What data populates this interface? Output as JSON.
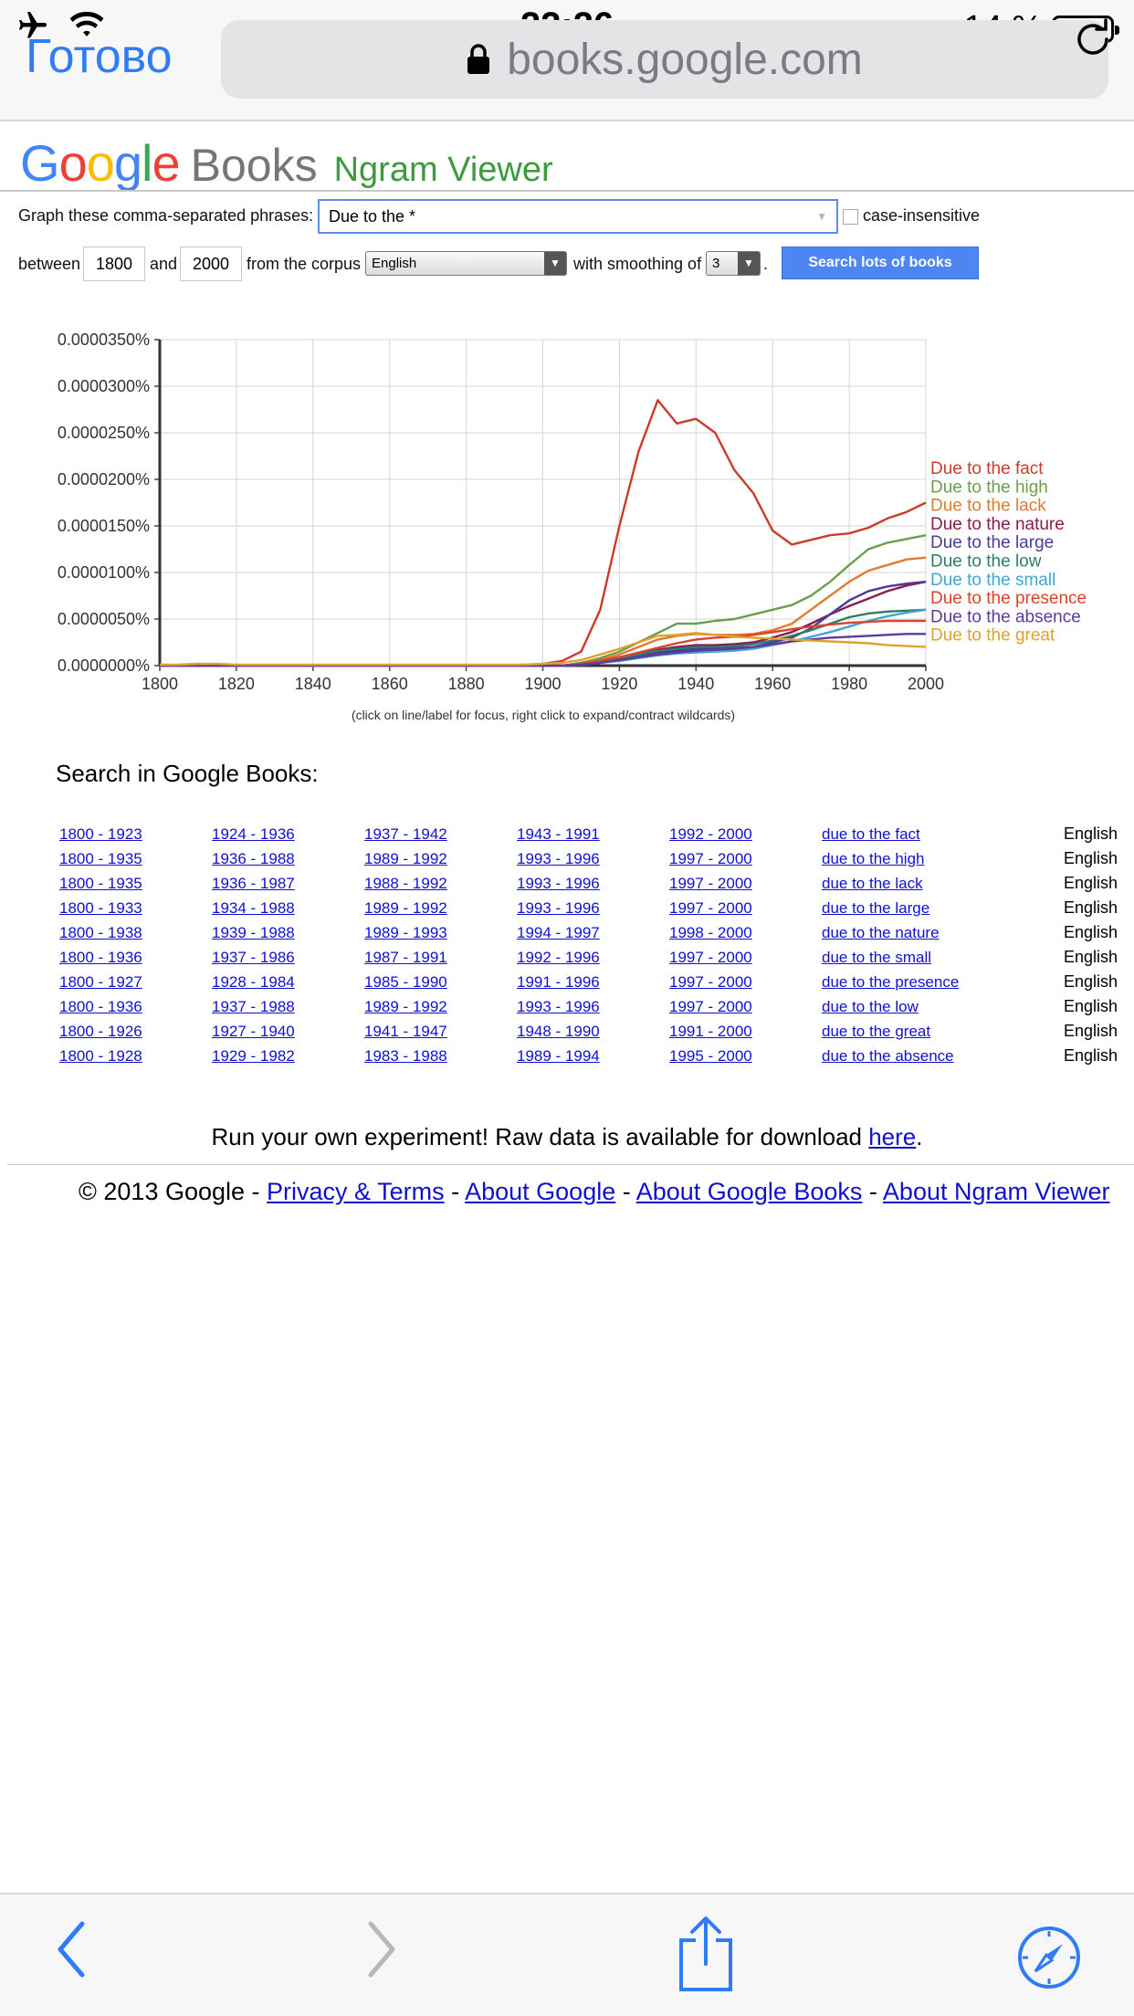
{
  "status_bar": {
    "time": "22:26",
    "battery": "14 %",
    "battery_level": 0.14
  },
  "safari": {
    "done_label": "Готово",
    "url": "books.google.com"
  },
  "header": {
    "google": "Google",
    "books": "Books",
    "title": "Ngram Viewer"
  },
  "form": {
    "phrases_label": "Graph these comma-separated phrases:",
    "phrases_value": "Due to the *",
    "case_insensitive_label": "case-insensitive",
    "between_label": "between",
    "start_year": "1800",
    "and_label": "and",
    "end_year": "2000",
    "corpus_label": "from the corpus",
    "corpus_value": "English",
    "smoothing_label": "with smoothing of",
    "smoothing_value": "3",
    "period": ".",
    "search_button": "Search lots of books"
  },
  "chart_note": "(click on line/label for focus, right click to expand/contract wildcards)",
  "chart_data": {
    "type": "line",
    "x": [
      1800,
      1805,
      1810,
      1815,
      1820,
      1825,
      1830,
      1835,
      1840,
      1845,
      1850,
      1855,
      1860,
      1865,
      1870,
      1875,
      1880,
      1885,
      1890,
      1895,
      1900,
      1905,
      1910,
      1915,
      1920,
      1925,
      1930,
      1935,
      1940,
      1945,
      1950,
      1955,
      1960,
      1965,
      1970,
      1975,
      1980,
      1985,
      1990,
      1995,
      2000
    ],
    "xlim": [
      1800,
      2000
    ],
    "ylim": [
      0,
      3.5e-05
    ],
    "x_ticks": [
      "1800",
      "1820",
      "1840",
      "1860",
      "1880",
      "1900",
      "1920",
      "1940",
      "1960",
      "1980",
      "2000"
    ],
    "y_ticks": [
      "0.0000000%",
      "0.0000050%",
      "0.0000100%",
      "0.0000150%",
      "0.0000200%",
      "0.0000250%",
      "0.0000300%",
      "0.0000350%"
    ],
    "grid": true,
    "legend_position": "right end of lines",
    "series": [
      {
        "name": "Due to the fact",
        "color": "#cc3a2a",
        "values": [
          0,
          0,
          0,
          0,
          0,
          0,
          0,
          0,
          0,
          0,
          0,
          0,
          0,
          0,
          0,
          0,
          0,
          0,
          0,
          0,
          2e-07,
          5e-07,
          1.5e-06,
          6e-06,
          1.5e-05,
          2.3e-05,
          2.85e-05,
          2.6e-05,
          2.65e-05,
          2.5e-05,
          2.1e-05,
          1.85e-05,
          1.45e-05,
          1.3e-05,
          1.35e-05,
          1.4e-05,
          1.42e-05,
          1.48e-05,
          1.58e-05,
          1.65e-05,
          1.75e-05
        ]
      },
      {
        "name": "Due to the high",
        "color": "#6a9e4e",
        "values": [
          0,
          0,
          0,
          0,
          0,
          0,
          0,
          0,
          0,
          0,
          0,
          0,
          0,
          0,
          0,
          0,
          0,
          0,
          0,
          0,
          0,
          0,
          3e-07,
          8e-07,
          1.5e-06,
          2.5e-06,
          3.5e-06,
          4.5e-06,
          4.5e-06,
          4.8e-06,
          5e-06,
          5.5e-06,
          6e-06,
          6.5e-06,
          7.5e-06,
          9e-06,
          1.08e-05,
          1.25e-05,
          1.32e-05,
          1.36e-05,
          1.4e-05
        ]
      },
      {
        "name": "Due to the lack",
        "color": "#e07b31",
        "values": [
          0,
          0,
          0,
          0,
          0,
          0,
          0,
          0,
          0,
          0,
          0,
          0,
          0,
          0,
          0,
          0,
          0,
          0,
          0,
          0,
          0,
          0,
          2e-07,
          6e-07,
          1.2e-06,
          2e-06,
          2.8e-06,
          3.2e-06,
          3.4e-06,
          3.3e-06,
          3.3e-06,
          3.4e-06,
          3.8e-06,
          4.5e-06,
          6e-06,
          7.5e-06,
          9e-06,
          1.02e-05,
          1.08e-05,
          1.14e-05,
          1.16e-05
        ]
      },
      {
        "name": "Due to the nature",
        "color": "#8c1a4f",
        "values": [
          0,
          0,
          0,
          0,
          0,
          0,
          0,
          0,
          0,
          0,
          0,
          0,
          0,
          0,
          0,
          0,
          0,
          0,
          0,
          0,
          0,
          0,
          2e-07,
          5e-07,
          9e-07,
          1.3e-06,
          1.7e-06,
          2e-06,
          2.2e-06,
          2.2e-06,
          2.3e-06,
          2.5e-06,
          3e-06,
          3.6e-06,
          4.5e-06,
          5.5e-06,
          6.4e-06,
          7.2e-06,
          8e-06,
          8.6e-06,
          9e-06
        ]
      },
      {
        "name": "Due to the large",
        "color": "#4a3a9c",
        "values": [
          0,
          0,
          0,
          0,
          0,
          0,
          0,
          0,
          0,
          0,
          0,
          0,
          0,
          0,
          0,
          0,
          0,
          0,
          0,
          0,
          0,
          0,
          1e-07,
          3e-07,
          6e-07,
          1e-06,
          1.4e-06,
          1.6e-06,
          1.8e-06,
          1.8e-06,
          1.9e-06,
          2e-06,
          2.5e-06,
          3e-06,
          4e-06,
          5.5e-06,
          7e-06,
          8e-06,
          8.5e-06,
          8.8e-06,
          9e-06
        ]
      },
      {
        "name": "Due to the low",
        "color": "#2f7d63",
        "values": [
          0,
          0,
          0,
          0,
          0,
          0,
          0,
          0,
          0,
          0,
          0,
          0,
          0,
          0,
          0,
          0,
          0,
          0,
          0,
          0,
          0,
          0,
          2e-07,
          4e-07,
          8e-07,
          1.2e-06,
          1.6e-06,
          1.8e-06,
          2e-06,
          2e-06,
          2.1e-06,
          2.3e-06,
          2.7e-06,
          3.2e-06,
          3.8e-06,
          4.5e-06,
          5.2e-06,
          5.6e-06,
          5.8e-06,
          5.9e-06,
          6e-06
        ]
      },
      {
        "name": "Due to the small",
        "color": "#42a5d4",
        "values": [
          0,
          0,
          0,
          0,
          0,
          0,
          0,
          0,
          0,
          0,
          0,
          0,
          0,
          0,
          0,
          0,
          0,
          0,
          0,
          0,
          0,
          0,
          1e-07,
          3e-07,
          5e-07,
          8e-07,
          1.1e-06,
          1.3e-06,
          1.4e-06,
          1.5e-06,
          1.6e-06,
          1.8e-06,
          2.2e-06,
          2.6e-06,
          3.1e-06,
          3.6e-06,
          4.2e-06,
          4.8e-06,
          5.3e-06,
          5.7e-06,
          6e-06
        ]
      },
      {
        "name": "Due to the presence",
        "color": "#d9442b",
        "values": [
          0,
          0,
          0,
          0,
          0,
          0,
          0,
          0,
          0,
          0,
          0,
          0,
          0,
          0,
          0,
          0,
          0,
          0,
          0,
          0,
          0,
          0,
          2e-07,
          5e-07,
          9e-07,
          1.4e-06,
          1.9e-06,
          2.4e-06,
          2.8e-06,
          3e-06,
          3.1e-06,
          3.3e-06,
          3.6e-06,
          3.9e-06,
          4.2e-06,
          4.4e-06,
          4.6e-06,
          4.7e-06,
          4.8e-06,
          4.8e-06,
          4.8e-06
        ]
      },
      {
        "name": "Due to the absence",
        "color": "#5c3a9e",
        "values": [
          0,
          0,
          0,
          0,
          0,
          0,
          0,
          0,
          0,
          0,
          0,
          0,
          0,
          0,
          0,
          0,
          0,
          0,
          0,
          0,
          0,
          0,
          1e-07,
          3e-07,
          6e-07,
          9e-07,
          1.2e-06,
          1.4e-06,
          1.6e-06,
          1.7e-06,
          1.8e-06,
          2e-06,
          2.3e-06,
          2.6e-06,
          2.8e-06,
          3e-06,
          3.1e-06,
          3.2e-06,
          3.3e-06,
          3.4e-06,
          3.4e-06
        ]
      },
      {
        "name": "Due to the great",
        "color": "#e0a12e",
        "values": [
          1e-07,
          1e-07,
          2e-07,
          2e-07,
          1e-07,
          1e-07,
          1e-07,
          1e-07,
          1e-07,
          1e-07,
          1e-07,
          1e-07,
          1e-07,
          1e-07,
          1e-07,
          1e-07,
          1e-07,
          1e-07,
          1e-07,
          1e-07,
          2e-07,
          3e-07,
          6e-07,
          1.2e-06,
          1.8e-06,
          2.5e-06,
          3.2e-06,
          3.3e-06,
          3.5e-06,
          3.3e-06,
          3.1e-06,
          3e-06,
          2.9e-06,
          2.8e-06,
          2.7e-06,
          2.6e-06,
          2.5e-06,
          2.4e-06,
          2.2e-06,
          2.1e-06,
          2e-06
        ]
      }
    ]
  },
  "search_heading": "Search in Google Books:",
  "results": [
    {
      "ranges": [
        "1800 - 1923",
        "1924 - 1936",
        "1937 - 1942",
        "1943 - 1991",
        "1992 - 2000"
      ],
      "phrase": "due to the fact",
      "lang": "English"
    },
    {
      "ranges": [
        "1800 - 1935",
        "1936 - 1988",
        "1989 - 1992",
        "1993 - 1996",
        "1997 - 2000"
      ],
      "phrase": "due to the high",
      "lang": "English"
    },
    {
      "ranges": [
        "1800 - 1935",
        "1936 - 1987",
        "1988 - 1992",
        "1993 - 1996",
        "1997 - 2000"
      ],
      "phrase": "due to the lack",
      "lang": "English"
    },
    {
      "ranges": [
        "1800 - 1933",
        "1934 - 1988",
        "1989 - 1992",
        "1993 - 1996",
        "1997 - 2000"
      ],
      "phrase": "due to the large",
      "lang": "English"
    },
    {
      "ranges": [
        "1800 - 1938",
        "1939 - 1988",
        "1989 - 1993",
        "1994 - 1997",
        "1998 - 2000"
      ],
      "phrase": "due to the nature",
      "lang": "English"
    },
    {
      "ranges": [
        "1800 - 1936",
        "1937 - 1986",
        "1987 - 1991",
        "1992 - 1996",
        "1997 - 2000"
      ],
      "phrase": "due to the small",
      "lang": "English"
    },
    {
      "ranges": [
        "1800 - 1927",
        "1928 - 1984",
        "1985 - 1990",
        "1991 - 1996",
        "1997 - 2000"
      ],
      "phrase": "due to the presence",
      "lang": "English"
    },
    {
      "ranges": [
        "1800 - 1936",
        "1937 - 1988",
        "1989 - 1992",
        "1993 - 1996",
        "1997 - 2000"
      ],
      "phrase": "due to the low",
      "lang": "English"
    },
    {
      "ranges": [
        "1800 - 1926",
        "1927 - 1940",
        "1941 - 1947",
        "1948 - 1990",
        "1991 - 2000"
      ],
      "phrase": "due to the great",
      "lang": "English"
    },
    {
      "ranges": [
        "1800 - 1928",
        "1929 - 1982",
        "1983 - 1988",
        "1989 - 1994",
        "1995 - 2000"
      ],
      "phrase": "due to the absence",
      "lang": "English"
    }
  ],
  "raw_data": {
    "text": "Run your own experiment! Raw data is available for download ",
    "link": "here",
    "end": "."
  },
  "footer": {
    "copyright": "© 2013 Google - ",
    "privacy": "Privacy & Terms",
    "sep": " - ",
    "about_google": "About Google",
    "about_books": "About Google Books",
    "about_ngram": "About Ngram Viewer"
  },
  "colors": {
    "accent": "#2f7cf6",
    "search_button": "#4d86f3",
    "link": "#1010cc",
    "ngram_title": "#3d9a3d"
  },
  "toolbar_icons": [
    "back-icon",
    "forward-icon",
    "share-icon",
    "compass-icon"
  ]
}
